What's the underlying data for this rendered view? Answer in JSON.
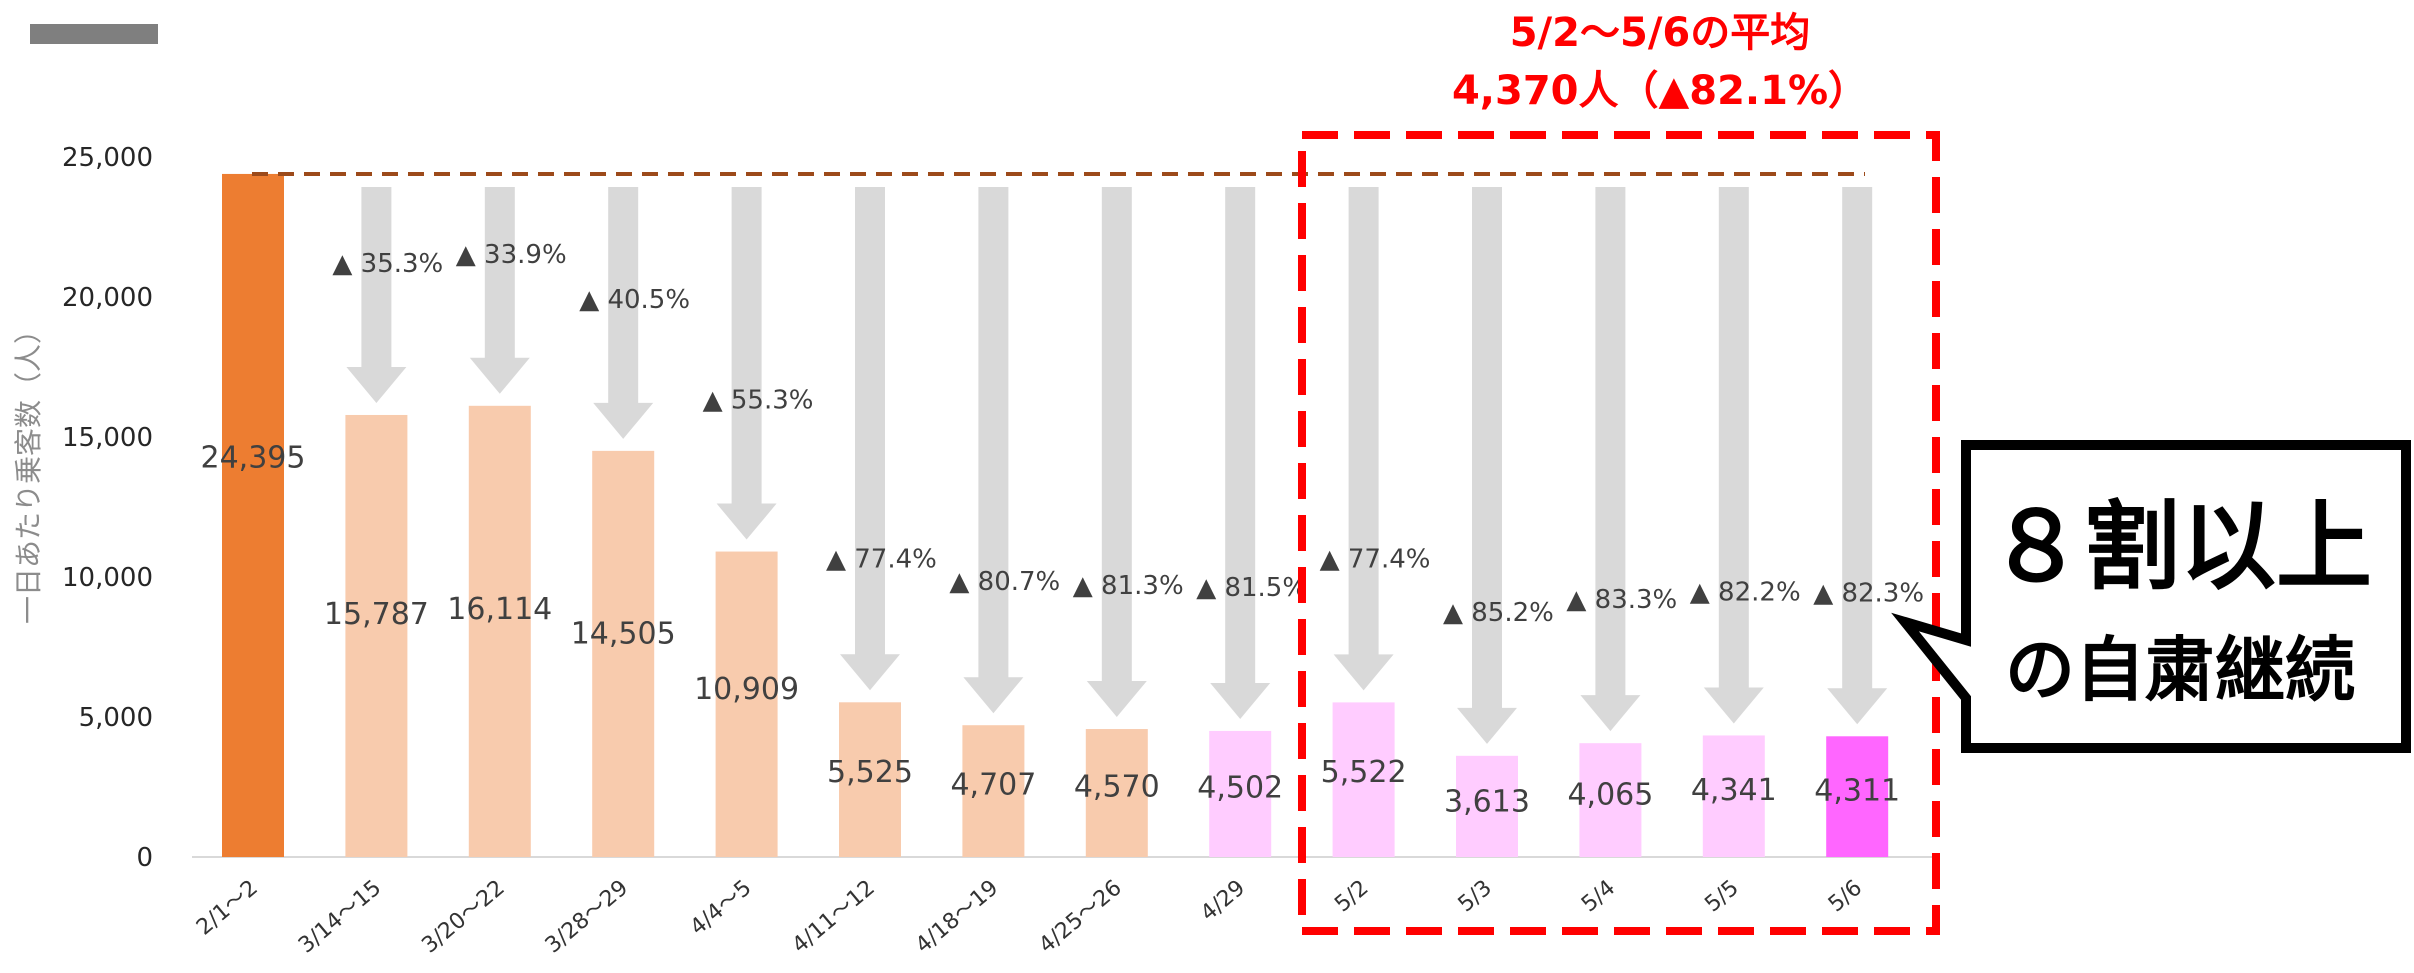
{
  "chart_data": {
    "type": "bar",
    "title": "",
    "ylabel": "一日あたり乗客数（人）",
    "ylim": [
      0,
      25000
    ],
    "yticks": [
      "0",
      "5,000",
      "10,000",
      "15,000",
      "20,000",
      "25,000"
    ],
    "categories": [
      "2/1～2",
      "3/14～15",
      "3/20～22",
      "3/28～29",
      "4/4～5",
      "4/11～12",
      "4/18～19",
      "4/25～26",
      "4/29",
      "5/2",
      "5/3",
      "5/4",
      "5/5",
      "5/6"
    ],
    "values": [
      24395,
      15787,
      16114,
      14505,
      10909,
      5525,
      4707,
      4570,
      4502,
      5522,
      3613,
      4065,
      4341,
      4311
    ],
    "value_labels": [
      "24,395",
      "15,787",
      "16,114",
      "14,505",
      "10,909",
      "5,525",
      "4,707",
      "4,570",
      "4,502",
      "5,522",
      "3,613",
      "4,065",
      "4,341",
      "4,311"
    ],
    "decline_labels": [
      "",
      "▲ 35.3%",
      "▲ 33.9%",
      "▲ 40.5%",
      "▲ 55.3%",
      "▲ 77.4%",
      "▲ 80.7%",
      "▲ 81.3%",
      "▲ 81.5%",
      "▲ 77.4%",
      "▲ 85.2%",
      "▲ 83.3%",
      "▲ 82.2%",
      "▲ 82.3%"
    ],
    "bar_colors": [
      "#ed7d31",
      "#f8cbad",
      "#f8cbad",
      "#f8cbad",
      "#f8cbad",
      "#f8cbad",
      "#f8cbad",
      "#f8cbad",
      "#ffccff",
      "#ffccff",
      "#ffccff",
      "#ffccff",
      "#ffccff",
      "#ff66ff"
    ],
    "reference_line_value": 24395,
    "highlight": {
      "line1": "5/2～5/6の平均",
      "line2": "4,370人（▲82.1%）",
      "color": "#ff0000"
    },
    "callout": {
      "line1": "８割以上",
      "line2": "の自粛継続"
    }
  },
  "colors": {
    "arrow": "#d9d9d9",
    "ref_line": "#9c4a1a",
    "axis": "#d9d9d9",
    "top_marker": "#7f7f7f"
  }
}
